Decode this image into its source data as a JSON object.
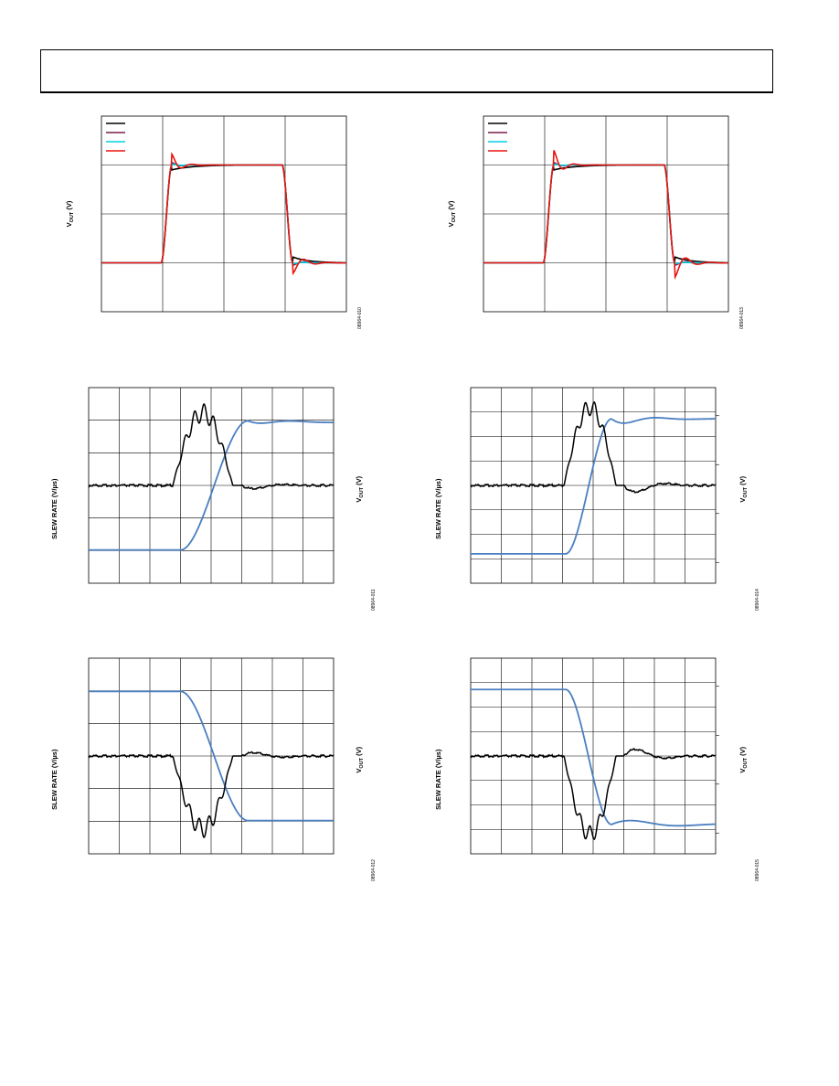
{
  "page": {
    "header_text": ""
  },
  "labels": {
    "vout": "VOUT (V)",
    "slew_rate": "SLEW RATE (V/µs)"
  },
  "chart_data": [
    {
      "id": "fig-left-1",
      "type": "line",
      "figure_id": "08964-010",
      "ylabel": "VOUT (V)",
      "xlim": [
        0,
        8
      ],
      "ylim": [
        -1,
        3
      ],
      "grid": true,
      "legend": {
        "placement": "top-left",
        "entries": 4
      },
      "series": [
        {
          "color": "#000000",
          "variant": "black",
          "overshoot": 0.0
        },
        {
          "color": "#7a1f4a",
          "variant": "purple",
          "overshoot": 0.05
        },
        {
          "color": "#00d0e6",
          "variant": "cyan",
          "overshoot": 0.02
        },
        {
          "color": "#e8120c",
          "variant": "red",
          "overshoot": 0.22
        }
      ],
      "waveform": {
        "rise_x": 2.0,
        "fall_x": 6.0,
        "low": 0.0,
        "high": 2.0
      }
    },
    {
      "id": "fig-right-1",
      "type": "line",
      "figure_id": "08964-013",
      "ylabel": "VOUT (V)",
      "xlim": [
        0,
        8
      ],
      "ylim": [
        -1,
        3
      ],
      "grid": true,
      "legend": {
        "placement": "top-left",
        "entries": 4
      },
      "series": [
        {
          "color": "#000000",
          "variant": "black",
          "overshoot": 0.0
        },
        {
          "color": "#7a1f4a",
          "variant": "purple",
          "overshoot": 0.05
        },
        {
          "color": "#00d0e6",
          "variant": "cyan",
          "overshoot": 0.02
        },
        {
          "color": "#e8120c",
          "variant": "red",
          "overshoot": 0.3
        }
      ],
      "waveform": {
        "rise_x": 2.0,
        "fall_x": 6.0,
        "low": 0.0,
        "high": 2.0
      }
    },
    {
      "id": "fig-left-2",
      "type": "line",
      "figure_id": "08964-011",
      "ylabel_left": "SLEW RATE (V/µs)",
      "ylabel_right": "VOUT (V)",
      "xlim": [
        0,
        8
      ],
      "ylim": [
        -3,
        3
      ],
      "grid": true,
      "series": [
        {
          "role": "slew_rate",
          "color": "#000000",
          "shape": "rise_pulse"
        },
        {
          "role": "vout",
          "color": "#4a7fc0",
          "shape": "rising_ramp"
        }
      ]
    },
    {
      "id": "fig-right-2",
      "type": "line",
      "figure_id": "08964-014",
      "ylabel_left": "SLEW RATE (V/µs)",
      "ylabel_right": "VOUT (V)",
      "xlim": [
        0,
        8
      ],
      "ylim": [
        -4,
        4
      ],
      "grid": true,
      "series": [
        {
          "role": "slew_rate",
          "color": "#000000",
          "shape": "rise_pulse_fast"
        },
        {
          "role": "vout",
          "color": "#4a7fc0",
          "shape": "rising_ramp_fast"
        }
      ]
    },
    {
      "id": "fig-left-3",
      "type": "line",
      "figure_id": "08964-012",
      "ylabel_left": "SLEW RATE (V/µs)",
      "ylabel_right": "VOUT (V)",
      "xlim": [
        0,
        8
      ],
      "ylim": [
        -3,
        3
      ],
      "grid": true,
      "series": [
        {
          "role": "slew_rate",
          "color": "#000000",
          "shape": "fall_pulse"
        },
        {
          "role": "vout",
          "color": "#4a7fc0",
          "shape": "falling_ramp"
        }
      ]
    },
    {
      "id": "fig-right-3",
      "type": "line",
      "figure_id": "08964-015",
      "ylabel_left": "SLEW RATE (V/µs)",
      "ylabel_right": "VOUT (V)",
      "xlim": [
        0,
        8
      ],
      "ylim": [
        -4,
        4
      ],
      "grid": true,
      "series": [
        {
          "role": "slew_rate",
          "color": "#000000",
          "shape": "fall_pulse_fast"
        },
        {
          "role": "vout",
          "color": "#4a7fc0",
          "shape": "falling_ramp_fast"
        }
      ]
    }
  ]
}
